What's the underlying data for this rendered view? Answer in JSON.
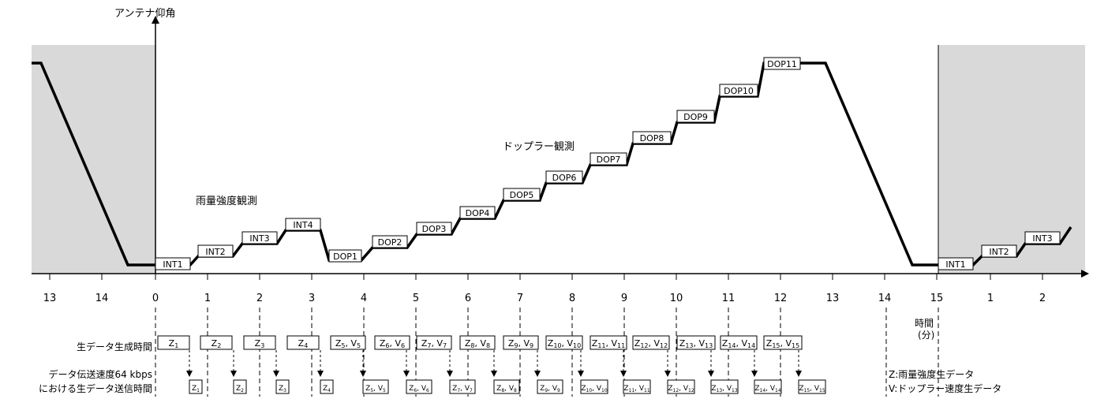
{
  "labels": {
    "y_axis": "アンテナ仰角",
    "time_axis": "時間\n(分)",
    "rain_obs": "雨量強度観測",
    "doppler_obs": "ドップラー観測",
    "raw_gen_row": "生データ生成時間",
    "tx_row_line1": "データ伝送速度64 kbps",
    "tx_row_line2": "における生データ送信時間",
    "legend_z": "Z:雨量強度生データ",
    "legend_v": "V:ドップラー速度生データ"
  },
  "x_ticks": [
    "13",
    "14",
    "0",
    "1",
    "2",
    "3",
    "4",
    "5",
    "6",
    "7",
    "8",
    "9",
    "10",
    "11",
    "12",
    "13",
    "14",
    "15",
    "1",
    "2"
  ],
  "scan_steps": [
    "INT1",
    "INT2",
    "INT3",
    "INT4",
    "DOP1",
    "DOP2",
    "DOP3",
    "DOP4",
    "DOP5",
    "DOP6",
    "DOP7",
    "DOP8",
    "DOP9",
    "DOP10",
    "DOP11"
  ],
  "next_cycle_steps": [
    "INT1",
    "INT2",
    "INT3"
  ],
  "gen_boxes": [
    {
      "t1": "Z",
      "s1": "1"
    },
    {
      "t1": "Z",
      "s1": "2"
    },
    {
      "t1": "Z",
      "s1": "3"
    },
    {
      "t1": "Z",
      "s1": "4"
    },
    {
      "t1": "Z",
      "s1": "5",
      "t2": "V",
      "s2": "5"
    },
    {
      "t1": "Z",
      "s1": "6",
      "t2": "V",
      "s2": "6"
    },
    {
      "t1": "Z",
      "s1": "7",
      "t2": "V",
      "s2": "7"
    },
    {
      "t1": "Z",
      "s1": "8",
      "t2": "V",
      "s2": "8"
    },
    {
      "t1": "Z",
      "s1": "9",
      "t2": "V",
      "s2": "9"
    },
    {
      "t1": "Z",
      "s1": "10",
      "t2": "V",
      "s2": "10"
    },
    {
      "t1": "Z",
      "s1": "11",
      "t2": "V",
      "s2": "11"
    },
    {
      "t1": "Z",
      "s1": "12",
      "t2": "V",
      "s2": "12"
    },
    {
      "t1": "Z",
      "s1": "13",
      "t2": "V",
      "s2": "13"
    },
    {
      "t1": "Z",
      "s1": "14",
      "t2": "V",
      "s2": "14"
    },
    {
      "t1": "Z",
      "s1": "15",
      "t2": "V",
      "s2": "15"
    }
  ],
  "tx_boxes": [
    {
      "t1": "Z",
      "s1": "1"
    },
    {
      "t1": "Z",
      "s1": "2"
    },
    {
      "t1": "Z",
      "s1": "3"
    },
    {
      "t1": "Z",
      "s1": "4"
    },
    {
      "t1": "Z",
      "s1": "5",
      "t2": "V",
      "s2": "5"
    },
    {
      "t1": "Z",
      "s1": "6",
      "t2": "V",
      "s2": "6"
    },
    {
      "t1": "Z",
      "s1": "7",
      "t2": "V",
      "s2": "7"
    },
    {
      "t1": "Z",
      "s1": "8",
      "t2": "V",
      "s2": "8"
    },
    {
      "t1": "Z",
      "s1": "9",
      "t2": "V",
      "s2": "9"
    },
    {
      "t1": "Z",
      "s1": "10",
      "t2": "V",
      "s2": "10"
    },
    {
      "t1": "Z",
      "s1": "11",
      "t2": "V",
      "s2": "11"
    },
    {
      "t1": "Z",
      "s1": "12",
      "t2": "V",
      "s2": "12"
    },
    {
      "t1": "Z",
      "s1": "13",
      "t2": "V",
      "s2": "13"
    },
    {
      "t1": "Z",
      "s1": "14",
      "t2": "V",
      "s2": "14"
    },
    {
      "t1": "Z",
      "s1": "15",
      "t2": "V",
      "s2": "15"
    }
  ],
  "colors": {
    "shade": "#d9d9d9",
    "line": "#000000",
    "box_fill": "#ffffff"
  }
}
